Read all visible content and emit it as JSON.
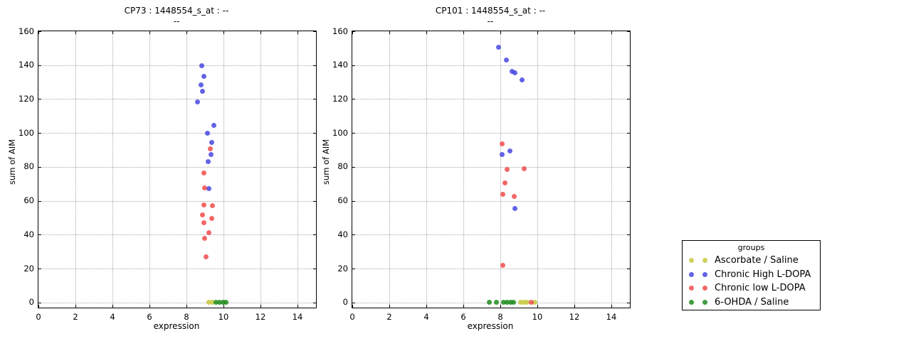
{
  "figure": {
    "background": "#ffffff"
  },
  "colors": {
    "ascorbate": "rgba(200,200,64,0.85)",
    "high": "rgba(60,60,224,0.8)",
    "low": "rgba(238,60,60,0.78)",
    "ohda": "rgba(30,140,30,0.85)"
  },
  "legend": {
    "title": "groups",
    "entries": [
      {
        "label": "Ascorbate / Saline",
        "color_key": "ascorbate"
      },
      {
        "label": "Chronic High L-DOPA",
        "color_key": "high"
      },
      {
        "label": "Chronic low L-DOPA",
        "color_key": "low"
      },
      {
        "label": "6-OHDA / Saline",
        "color_key": "ohda"
      }
    ]
  },
  "chart_data": [
    {
      "type": "scatter",
      "title": "CP73 : 1448554_s_at : --",
      "subtitle": "--",
      "xlabel": "expression",
      "ylabel": "sum of AIM",
      "xlim": [
        0,
        15
      ],
      "ylim": [
        -3,
        160
      ],
      "xticks": [
        0,
        2,
        4,
        6,
        8,
        10,
        12,
        14
      ],
      "yticks": [
        0,
        20,
        40,
        60,
        80,
        100,
        120,
        140,
        160
      ],
      "grid": true,
      "series": [
        {
          "name": "Ascorbate / Saline",
          "color_key": "ascorbate",
          "points": [
            [
              9.2,
              0
            ],
            [
              9.42,
              0
            ]
          ]
        },
        {
          "name": "Chronic High L-DOPA",
          "color_key": "high",
          "points": [
            [
              8.83,
              139.5
            ],
            [
              8.93,
              133.5
            ],
            [
              8.78,
              128.5
            ],
            [
              8.85,
              124.5
            ],
            [
              8.59,
              118.5
            ],
            [
              9.47,
              104.5
            ],
            [
              9.13,
              100
            ],
            [
              9.36,
              94.5
            ],
            [
              9.32,
              87.5
            ],
            [
              9.17,
              83
            ],
            [
              9.23,
              67
            ]
          ]
        },
        {
          "name": "Chronic low L-DOPA",
          "color_key": "low",
          "points": [
            [
              9.29,
              90.5
            ],
            [
              8.93,
              76.5
            ],
            [
              8.97,
              67.5
            ],
            [
              8.93,
              57.5
            ],
            [
              9.41,
              57
            ],
            [
              8.85,
              51.5
            ],
            [
              9.38,
              49.5
            ],
            [
              8.93,
              47
            ],
            [
              9.23,
              41
            ],
            [
              8.97,
              38
            ],
            [
              9.06,
              27
            ]
          ]
        },
        {
          "name": "6-OHDA / Saline",
          "color_key": "ohda",
          "points": [
            [
              9.6,
              0
            ],
            [
              9.8,
              0
            ],
            [
              9.97,
              0
            ],
            [
              10.12,
              0
            ]
          ]
        }
      ]
    },
    {
      "type": "scatter",
      "title": "CP101 : 1448554_s_at : --",
      "subtitle": "--",
      "xlabel": "expression",
      "ylabel": "sum of AIM",
      "xlim": [
        0,
        15
      ],
      "ylim": [
        -3,
        160
      ],
      "xticks": [
        0,
        2,
        4,
        6,
        8,
        10,
        12,
        14
      ],
      "yticks": [
        0,
        20,
        40,
        60,
        80,
        100,
        120,
        140,
        160
      ],
      "grid": true,
      "series": [
        {
          "name": "Ascorbate / Saline",
          "color_key": "ascorbate",
          "points": [
            [
              9.1,
              0
            ],
            [
              9.27,
              0
            ],
            [
              9.44,
              0
            ],
            [
              9.85,
              0
            ]
          ]
        },
        {
          "name": "Chronic High L-DOPA",
          "color_key": "high",
          "points": [
            [
              7.92,
              150.5
            ],
            [
              8.33,
              143
            ],
            [
              8.63,
              136.5
            ],
            [
              8.78,
              135.5
            ],
            [
              9.18,
              131.5
            ],
            [
              8.51,
              89.5
            ],
            [
              8.1,
              87.5
            ],
            [
              8.77,
              55.5
            ]
          ]
        },
        {
          "name": "Chronic low L-DOPA",
          "color_key": "low",
          "points": [
            [
              8.1,
              93.5
            ],
            [
              8.37,
              78.5
            ],
            [
              9.3,
              79
            ],
            [
              8.24,
              70.5
            ],
            [
              8.15,
              64
            ],
            [
              8.76,
              62.5
            ],
            [
              8.12,
              22
            ],
            [
              9.67,
              0
            ]
          ]
        },
        {
          "name": "6-OHDA / Saline",
          "color_key": "ohda",
          "points": [
            [
              7.41,
              0
            ],
            [
              7.77,
              0
            ],
            [
              8.18,
              0
            ],
            [
              8.36,
              0
            ],
            [
              8.54,
              0
            ],
            [
              8.72,
              0
            ]
          ]
        }
      ]
    }
  ]
}
